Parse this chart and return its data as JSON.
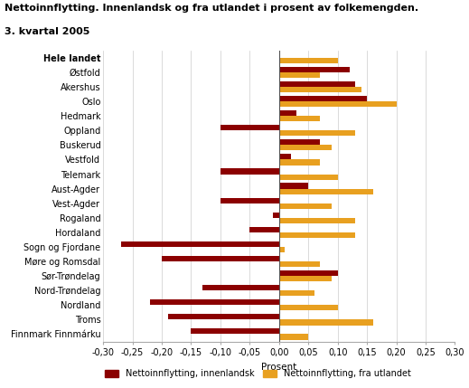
{
  "title_line1": "Nettoinnflytting. Innenlandsk og fra utlandet i prosent av folkemengden.",
  "title_line2": "3. kvartal 2005",
  "categories": [
    "Hele landet",
    "Østfold",
    "Akershus",
    "Oslo",
    "Hedmark",
    "Oppland",
    "Buskerud",
    "Vestfold",
    "Telemark",
    "Aust-Agder",
    "Vest-Agder",
    "Rogaland",
    "Hordaland",
    "Sogn og Fjordane",
    "Møre og Romsdal",
    "Sør-Trøndelag",
    "Nord-Trøndelag",
    "Nordland",
    "Troms",
    "Finnmark Finnmárku"
  ],
  "innenlandsk": [
    0.0,
    0.12,
    0.13,
    0.15,
    0.03,
    -0.1,
    0.07,
    0.02,
    -0.1,
    0.05,
    -0.1,
    -0.01,
    -0.05,
    -0.27,
    -0.2,
    0.1,
    -0.13,
    -0.22,
    -0.19,
    -0.15
  ],
  "utlandet": [
    0.1,
    0.07,
    0.14,
    0.2,
    0.07,
    0.13,
    0.09,
    0.07,
    0.1,
    0.16,
    0.09,
    0.13,
    0.13,
    0.01,
    0.07,
    0.09,
    0.06,
    0.1,
    0.16,
    0.05
  ],
  "color_innenlandsk": "#8B0000",
  "color_utlandet": "#E8A020",
  "xlabel": "Prosent",
  "xlim": [
    -0.3,
    0.3
  ],
  "xticks": [
    -0.3,
    -0.25,
    -0.2,
    -0.15,
    -0.1,
    -0.05,
    0.0,
    0.05,
    0.1,
    0.15,
    0.2,
    0.25,
    0.3
  ],
  "legend_innenlandsk": "Nettoinnflytting, innenlandsk",
  "legend_utlandet": "Nettoinnflytting, fra utlandet"
}
